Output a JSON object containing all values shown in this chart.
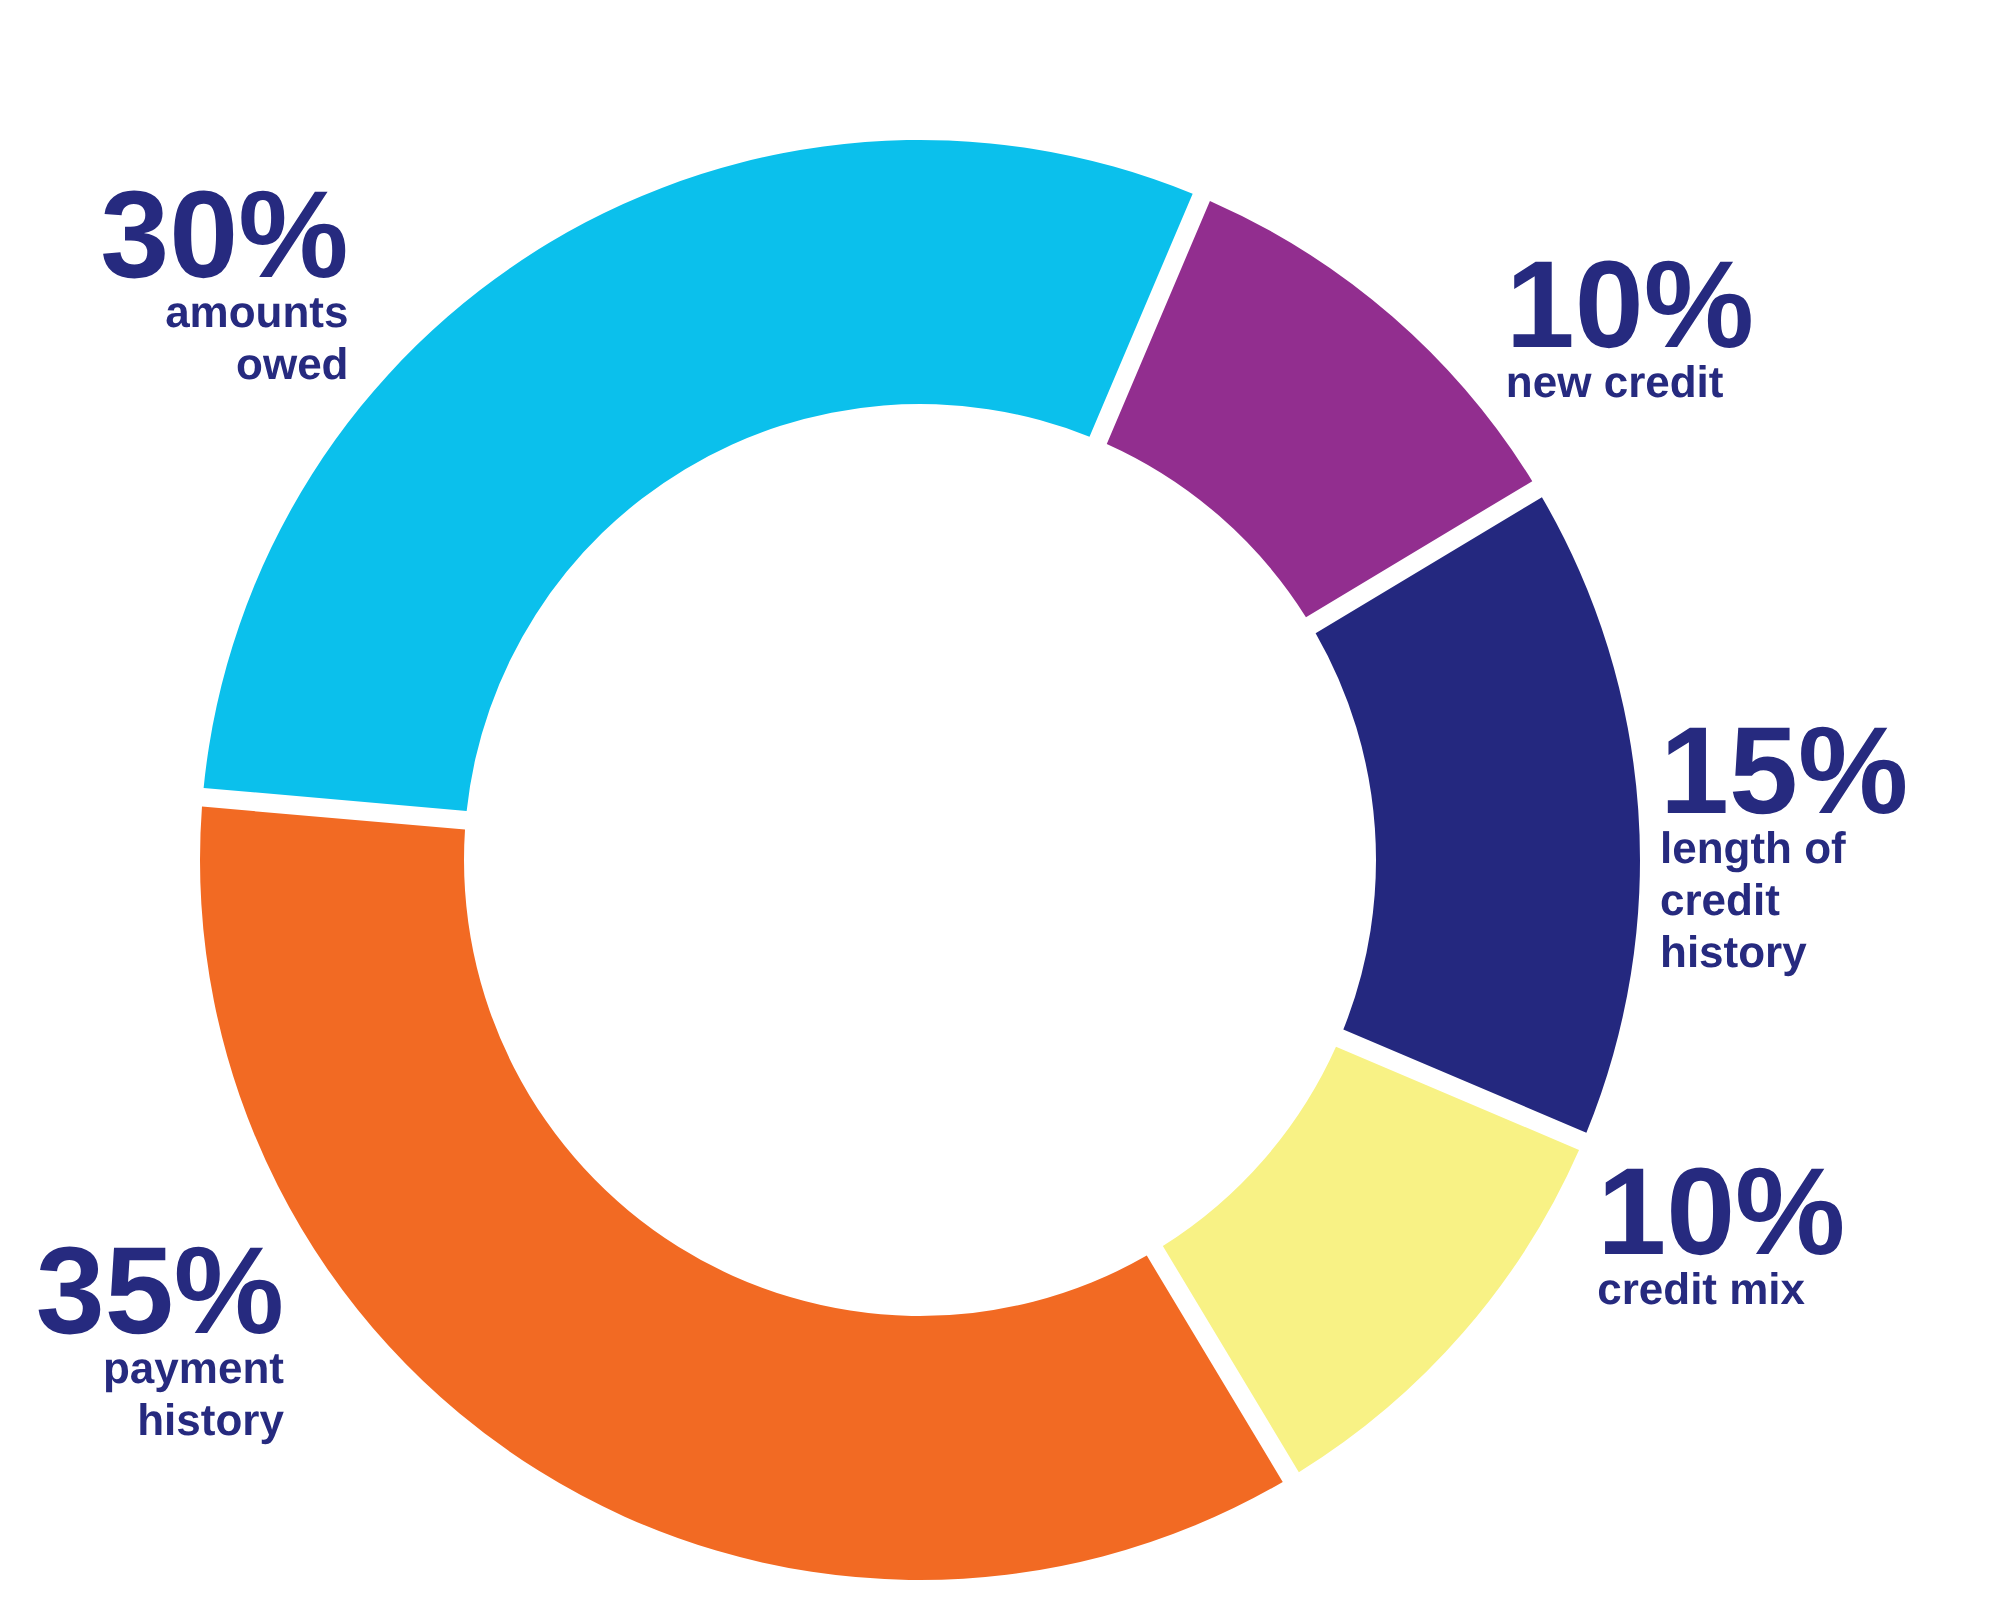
{
  "chart_data": {
    "type": "donut",
    "categories": [
      "new credit",
      "length of credit history",
      "credit mix",
      "payment history",
      "amounts owed"
    ],
    "values": [
      10,
      15,
      10,
      35,
      30
    ],
    "colors": [
      "#922e8f",
      "#24287f",
      "#f8f285",
      "#f26a23",
      "#0bc0ec"
    ],
    "value_labels": [
      "10%",
      "15%",
      "10%",
      "35%",
      "30%"
    ]
  }
}
